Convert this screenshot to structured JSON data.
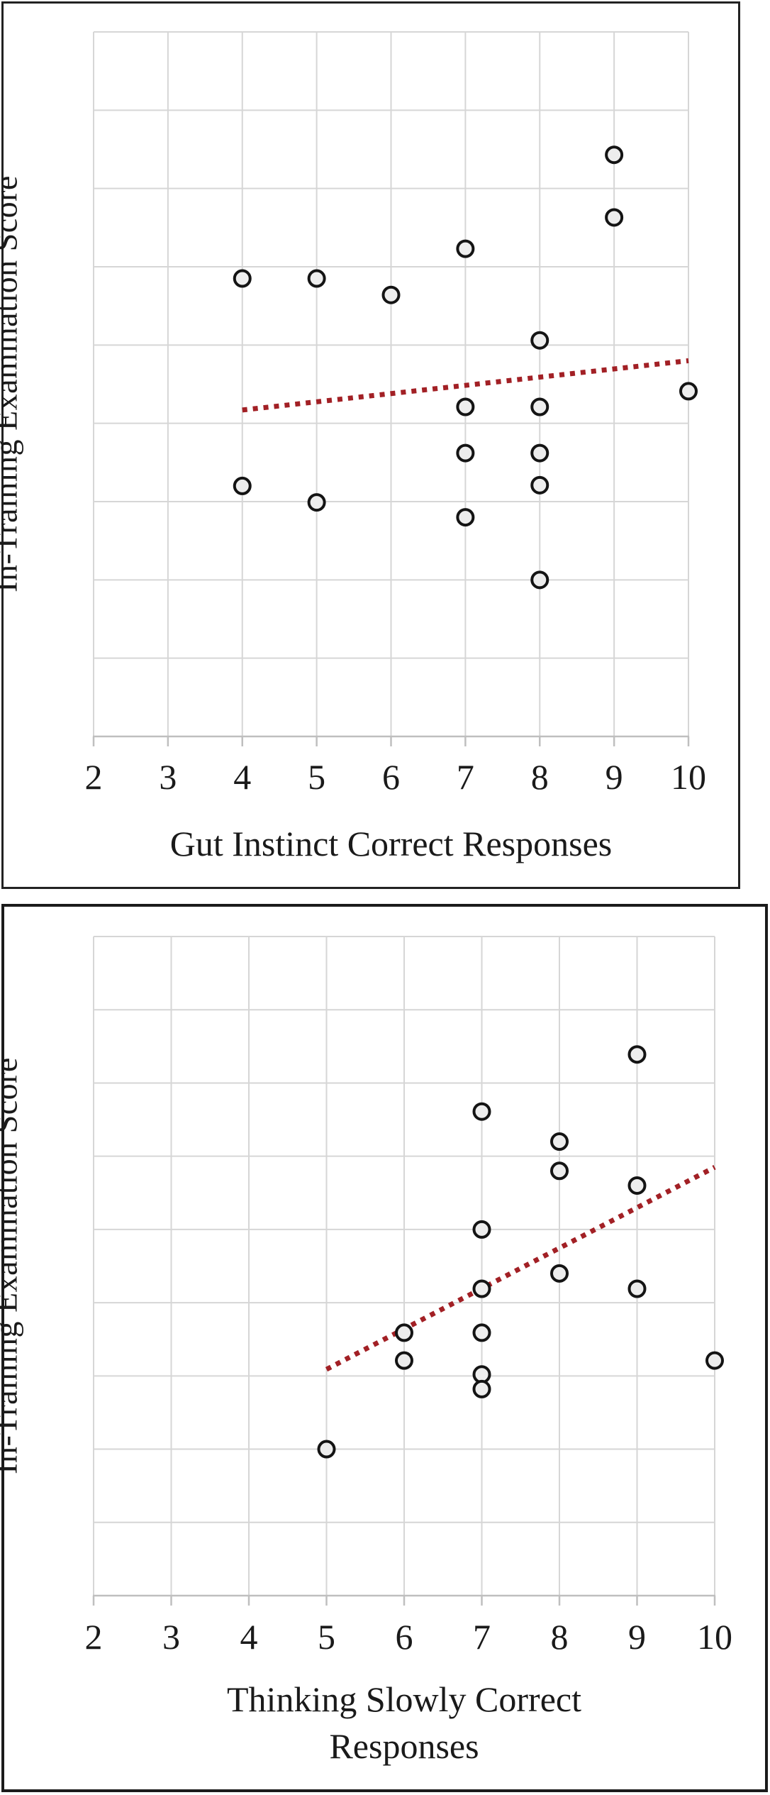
{
  "page": {
    "background": "#FFFFFF"
  },
  "colors": {
    "grid": "#D6D6D6",
    "axis": "#BFBFBF",
    "text": "#1A1A1A",
    "trend": "#A22025",
    "marker_fill": "#EDEDED",
    "marker_stroke": "#141414",
    "figure_border": "#222222"
  },
  "chart_data": [
    {
      "type": "scatter",
      "position": "top",
      "title": "",
      "xlabel": "Gut Instinct Correct Responses",
      "ylabel": "In-Training Examination Score",
      "x_ticks": [
        2,
        3,
        4,
        5,
        6,
        7,
        8,
        9,
        10
      ],
      "y_tick_labels": [],
      "xlim": [
        2,
        10
      ],
      "ylim": [
        0,
        9
      ],
      "y_grid_step": 1,
      "grid": true,
      "legend": false,
      "marker": "open-circle",
      "points": [
        [
          4,
          5.85
        ],
        [
          5,
          5.85
        ],
        [
          6,
          5.64
        ],
        [
          7,
          6.23
        ],
        [
          9,
          7.43
        ],
        [
          9,
          6.63
        ],
        [
          8,
          5.06
        ],
        [
          10,
          4.41
        ],
        [
          7,
          4.21
        ],
        [
          8,
          4.21
        ],
        [
          7,
          3.62
        ],
        [
          8,
          3.62
        ],
        [
          8,
          3.21
        ],
        [
          4,
          3.2
        ],
        [
          5,
          2.99
        ],
        [
          7,
          2.8
        ],
        [
          8,
          2.0
        ]
      ],
      "trendline": {
        "style": "dotted",
        "x1": 4,
        "y1": 4.17,
        "x2": 10,
        "y2": 4.8
      }
    },
    {
      "type": "scatter",
      "position": "bottom",
      "title": "",
      "xlabel": "Thinking Slowly Correct Responses",
      "xlabel_lines": [
        "Thinking Slowly Correct",
        "Responses"
      ],
      "ylabel": "In-Training Examination Score",
      "x_ticks": [
        2,
        3,
        4,
        5,
        6,
        7,
        8,
        9,
        10
      ],
      "y_tick_labels": [],
      "xlim": [
        2,
        10
      ],
      "ylim": [
        0,
        9
      ],
      "y_grid_step": 1,
      "grid": true,
      "legend": false,
      "marker": "open-circle",
      "points": [
        [
          9,
          7.39
        ],
        [
          7,
          6.61
        ],
        [
          8,
          6.2
        ],
        [
          8,
          5.8
        ],
        [
          9,
          5.6
        ],
        [
          7,
          5.0
        ],
        [
          8,
          4.4
        ],
        [
          7,
          4.19
        ],
        [
          9,
          4.19
        ],
        [
          6,
          3.59
        ],
        [
          7,
          3.59
        ],
        [
          6,
          3.21
        ],
        [
          10,
          3.21
        ],
        [
          7,
          3.02
        ],
        [
          7,
          2.82
        ],
        [
          5,
          2.0
        ]
      ],
      "trendline": {
        "style": "dotted",
        "x1": 5,
        "y1": 3.09,
        "x2": 10,
        "y2": 5.85
      }
    }
  ]
}
